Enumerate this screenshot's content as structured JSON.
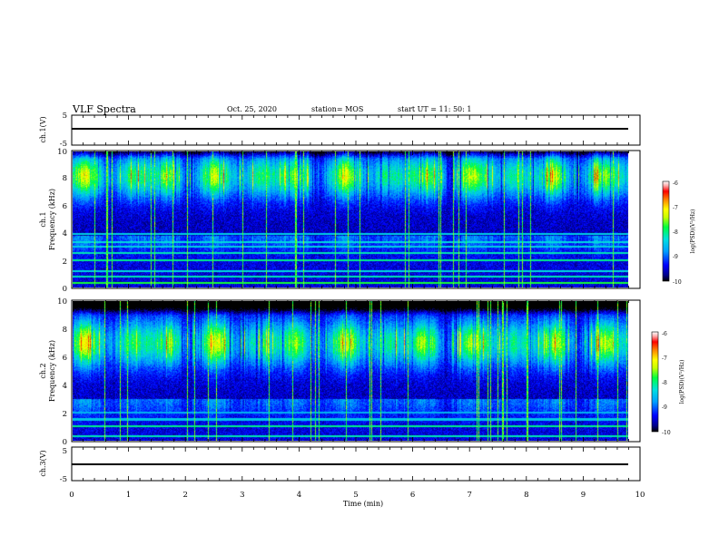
{
  "header": {
    "title": "VLF Spectra",
    "date": "Oct. 25, 2020",
    "station": "station= MOS",
    "start": "start  UT =   11: 50: 1"
  },
  "chart_data": [
    {
      "type": "line",
      "panel": "ch1-voltage",
      "ylabel": "ch.1(V)",
      "ylim": [
        -5,
        5
      ],
      "yticks": [
        "5",
        "-5"
      ],
      "series": [
        {
          "values": [
            [
              0,
              0
            ],
            [
              9.83,
              0
            ]
          ]
        }
      ]
    },
    {
      "type": "heatmap",
      "panel": "ch1-spectrogram",
      "ylabel_line1": "ch.1",
      "ylabel_line2": "Frequency (kHz)",
      "ylim": [
        0,
        10
      ],
      "yticks": [
        "0",
        "2",
        "4",
        "6",
        "8",
        "10"
      ],
      "xlim": [
        0,
        9.83
      ],
      "emission_band_khz": [
        5.5,
        9.5
      ],
      "peak_khz": 8.2,
      "colorbar": {
        "label": "log(PSD)(V²/Hz)",
        "min": -10,
        "max": -6,
        "ticks": [
          "-6",
          "-7",
          "-8",
          "-9",
          "-10"
        ]
      }
    },
    {
      "type": "heatmap",
      "panel": "ch2-spectrogram",
      "ylabel_line1": "ch.2",
      "ylabel_line2": "Frequency (kHz)",
      "ylim": [
        0,
        10
      ],
      "yticks": [
        "0",
        "2",
        "4",
        "6",
        "8",
        "10"
      ],
      "xlim": [
        0,
        9.83
      ],
      "emission_band_khz": [
        4.5,
        9.0
      ],
      "peak_khz": 7.0,
      "colorbar": {
        "label": "log(PSD)(V²/Hz)",
        "min": -10,
        "max": -6,
        "ticks": [
          "-6",
          "-7",
          "-8",
          "-9",
          "-10"
        ]
      }
    },
    {
      "type": "line",
      "panel": "ch3-voltage",
      "ylabel": "ch.3(V)",
      "ylim": [
        -5,
        5
      ],
      "yticks": [
        "5",
        "-5"
      ],
      "series": [
        {
          "values": [
            [
              0,
              0
            ],
            [
              9.83,
              0
            ]
          ]
        }
      ]
    }
  ],
  "xaxis": {
    "label": "Time (min)",
    "range": [
      0,
      10
    ],
    "ticks": [
      "0",
      "1",
      "2",
      "3",
      "4",
      "5",
      "6",
      "7",
      "8",
      "9",
      "10"
    ]
  },
  "colors": {
    "colormap": [
      "#000000",
      "#000033",
      "#00008b",
      "#0000ff",
      "#0080ff",
      "#00e0e0",
      "#00ff40",
      "#c8ff00",
      "#ffff00",
      "#ff8000",
      "#ff0000",
      "#ff6060",
      "#ffd0d0",
      "#ffffff"
    ],
    "line": "#000000"
  }
}
